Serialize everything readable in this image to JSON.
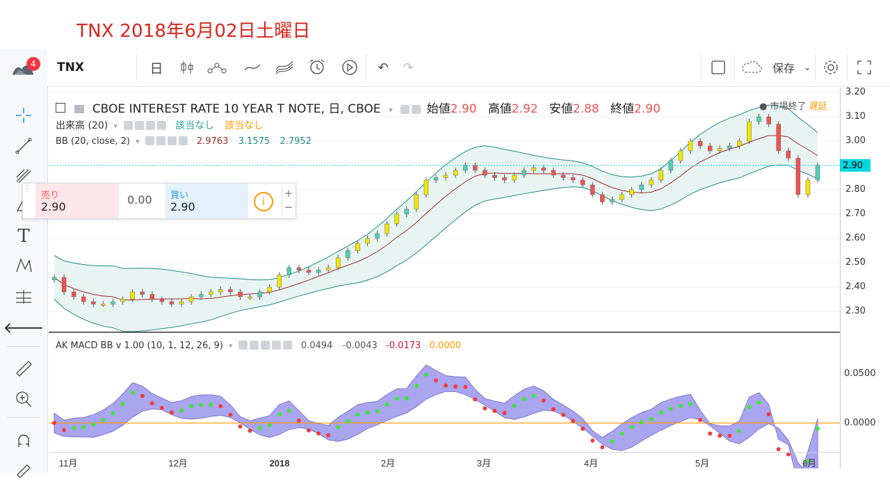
{
  "caption": "TNX 2018年6月02日土曜日",
  "toolbar": {
    "symbol": "TNX",
    "interval": "日",
    "save_label": "保存",
    "alert_badge": "4"
  },
  "legend": {
    "title": "CBOE INTEREST RATE 10 YEAR T NOTE, 日, CBOE",
    "open_label": "始値",
    "open_val": "2.90",
    "high_label": "高値",
    "high_val": "2.92",
    "low_label": "安値",
    "low_val": "2.88",
    "close_label": "終値",
    "close_val": "2.90",
    "market_status": "市場終了",
    "delay": "遅延",
    "volume_label": "出来高 (20)",
    "volume_na1": "該当なし",
    "volume_na2": "該当なし",
    "bb_label": "BB (20, close, 2)",
    "bb_mid": "2.9763",
    "bb_up": "3.1575",
    "bb_low": "2.7952",
    "macd_label": "AK MACD BB v 1.00 (10, 1, 12, 26, 9)",
    "macd_v1": "0.0494",
    "macd_v2": "-0.0043",
    "macd_v3": "-0.0173",
    "macd_v4": "0.0000"
  },
  "trade": {
    "sell_label": "売り",
    "sell_price": "2.90",
    "spread": "0.00",
    "buy_label": "買い",
    "buy_price": "2.90"
  },
  "price_axis": {
    "ticks": [
      "3.20",
      "3.10",
      "3.00",
      "2.90",
      "2.80",
      "2.70",
      "2.60",
      "2.50",
      "2.40",
      "2.30"
    ],
    "current": "2.90"
  },
  "macd_axis": {
    "ticks": [
      "0.0500",
      "0.0000"
    ]
  },
  "time_axis": {
    "ticks": [
      "11月",
      "12月",
      "2018",
      "2月",
      "3月",
      "4月",
      "5月",
      "6月"
    ]
  },
  "colors": {
    "up": "#f2e600",
    "down": "#ef5350",
    "up2": "#4dd0b4",
    "band_fill": "#e8f4f2",
    "band_line": "#1e8c86",
    "mid": "#9c2a2a",
    "macd_fill": "#a9a5ef",
    "accent": "#d9241c"
  },
  "chart_data": {
    "type": "candlestick",
    "symbol": "TNX",
    "x_ticks": [
      "11月",
      "12月",
      "2018",
      "2月",
      "3月",
      "4月",
      "5月",
      "6月"
    ],
    "ylim": [
      2.22,
      3.22
    ],
    "closes": [
      2.44,
      2.38,
      2.36,
      2.34,
      2.33,
      2.33,
      2.34,
      2.35,
      2.38,
      2.37,
      2.35,
      2.34,
      2.33,
      2.34,
      2.36,
      2.37,
      2.38,
      2.39,
      2.38,
      2.36,
      2.36,
      2.38,
      2.4,
      2.45,
      2.48,
      2.47,
      2.46,
      2.47,
      2.48,
      2.52,
      2.55,
      2.58,
      2.6,
      2.62,
      2.66,
      2.7,
      2.72,
      2.78,
      2.84,
      2.85,
      2.86,
      2.88,
      2.9,
      2.88,
      2.86,
      2.85,
      2.84,
      2.86,
      2.88,
      2.89,
      2.88,
      2.86,
      2.85,
      2.84,
      2.82,
      2.78,
      2.75,
      2.76,
      2.78,
      2.8,
      2.82,
      2.84,
      2.88,
      2.92,
      2.96,
      3.0,
      2.98,
      2.96,
      2.97,
      2.98,
      3.0,
      3.08,
      3.1,
      3.07,
      2.96,
      2.93,
      2.78,
      2.84,
      2.9
    ]
  }
}
